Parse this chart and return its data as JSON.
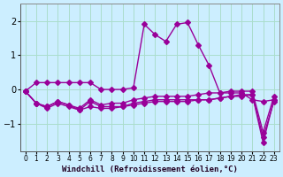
{
  "xlabel": "Windchill (Refroidissement éolien,°C)",
  "background_color": "#cceeff",
  "grid_color": "#aaddcc",
  "line_color": "#990099",
  "x": [
    0,
    1,
    2,
    3,
    4,
    5,
    6,
    7,
    8,
    9,
    10,
    11,
    12,
    13,
    14,
    15,
    16,
    17,
    18,
    19,
    20,
    21,
    22,
    23
  ],
  "series1": [
    -0.05,
    0.2,
    0.2,
    0.2,
    0.2,
    0.2,
    0.2,
    0.0,
    0.0,
    0.0,
    0.05,
    1.9,
    1.6,
    1.4,
    1.9,
    1.95,
    1.3,
    0.7,
    -0.1,
    -0.1,
    -0.1,
    -0.3,
    -0.35,
    -0.3
  ],
  "series2": [
    -0.05,
    -0.4,
    -0.5,
    -0.35,
    -0.45,
    -0.6,
    -0.35,
    -0.5,
    -0.5,
    -0.5,
    -0.4,
    -0.35,
    -0.3,
    -0.3,
    -0.3,
    -0.3,
    -0.3,
    -0.3,
    -0.25,
    -0.2,
    -0.15,
    -0.15,
    -1.4,
    -0.35
  ],
  "series3": [
    -0.05,
    -0.4,
    -0.55,
    -0.4,
    -0.5,
    -0.6,
    -0.5,
    -0.55,
    -0.55,
    -0.5,
    -0.45,
    -0.4,
    -0.35,
    -0.35,
    -0.35,
    -0.35,
    -0.3,
    -0.3,
    -0.25,
    -0.2,
    -0.2,
    -0.15,
    -1.55,
    -0.3
  ],
  "series4": [
    -0.05,
    -0.4,
    -0.5,
    -0.35,
    -0.45,
    -0.55,
    -0.3,
    -0.45,
    -0.4,
    -0.4,
    -0.3,
    -0.25,
    -0.2,
    -0.2,
    -0.2,
    -0.2,
    -0.15,
    -0.1,
    -0.1,
    -0.05,
    -0.05,
    -0.05,
    -1.25,
    -0.2
  ],
  "ylim": [
    -1.8,
    2.5
  ],
  "yticks": [
    -1,
    0,
    1,
    2
  ],
  "marker": "D",
  "markersize": 3,
  "linewidth": 1.0
}
